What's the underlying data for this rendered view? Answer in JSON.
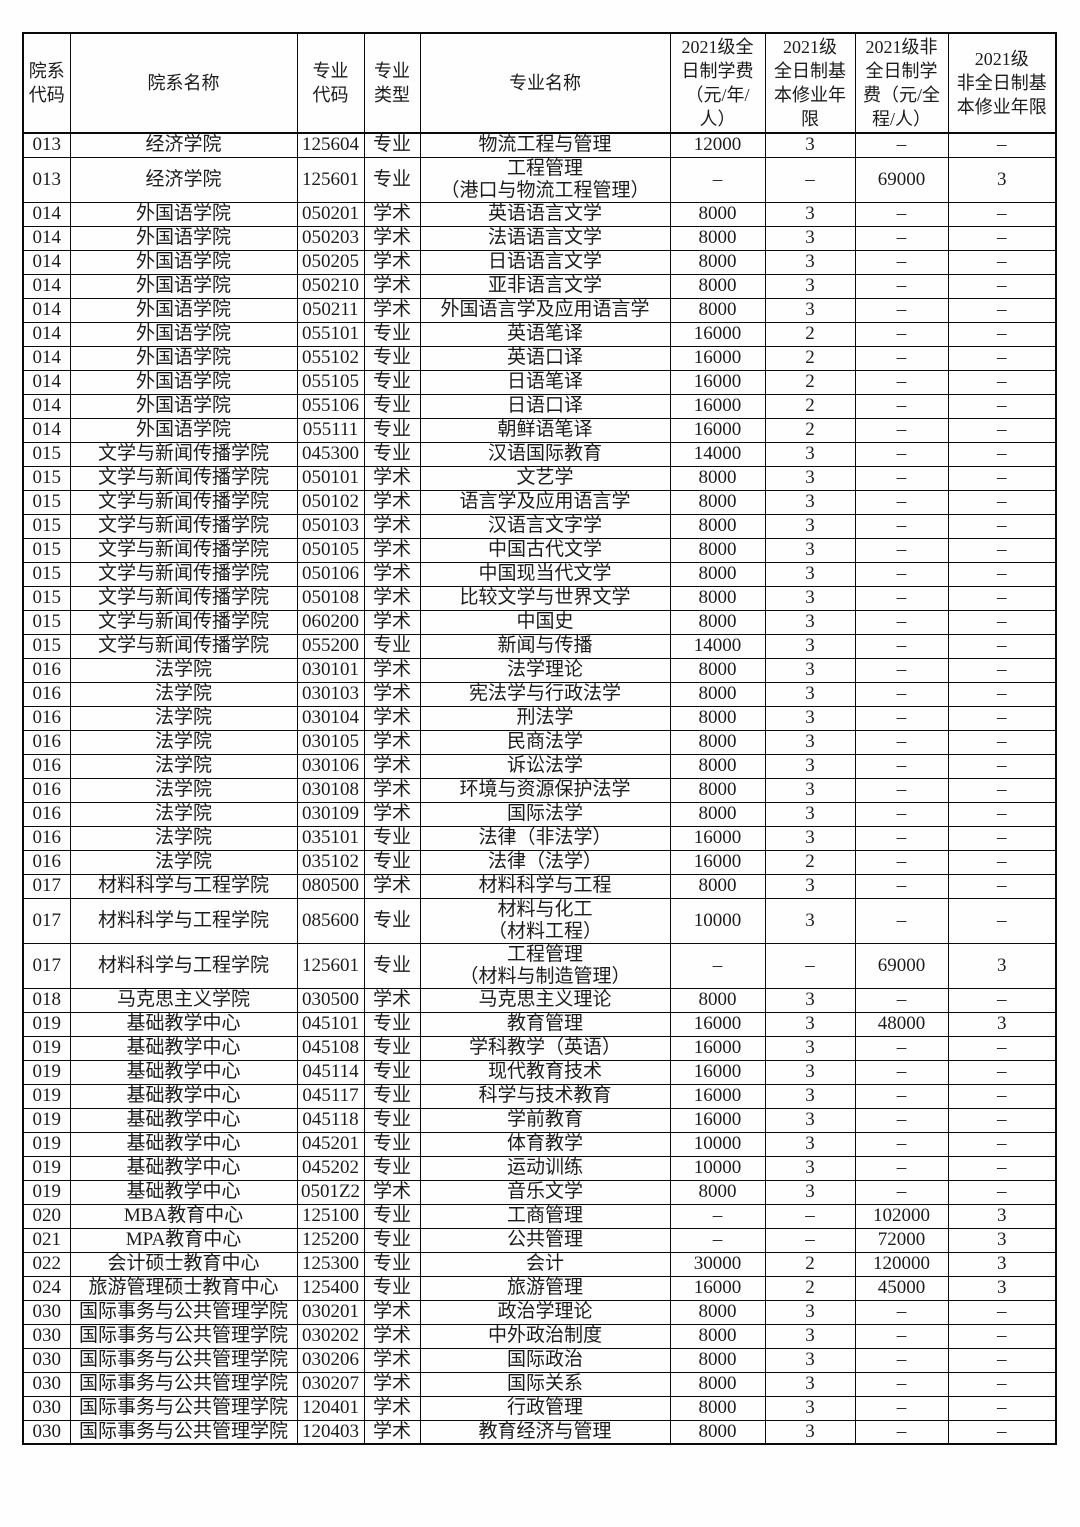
{
  "page": {
    "background_color": "#fefefe",
    "text_color": "#1c1c1c",
    "border_color": "#0a0a0a"
  },
  "table": {
    "columns": [
      "院系\n代码",
      "院系名称",
      "专业\n代码",
      "专业\n类型",
      "专业名称",
      "2021级全\n日制学费\n（元/年/\n人）",
      "2021级\n全日制基\n本修业年\n限",
      "2021级非\n全日制学\n费（元/全\n程/人）",
      "2021级\n非全日制基\n本修业年限"
    ],
    "rows": [
      [
        "013",
        "经济学院",
        "125604",
        "专业",
        "物流工程与管理",
        "12000",
        "3",
        "–",
        "–"
      ],
      [
        "013",
        "经济学院",
        "125601",
        "专业",
        "工程管理\n（港口与物流工程管理）",
        "–",
        "–",
        "69000",
        "3"
      ],
      [
        "014",
        "外国语学院",
        "050201",
        "学术",
        "英语语言文学",
        "8000",
        "3",
        "–",
        "–"
      ],
      [
        "014",
        "外国语学院",
        "050203",
        "学术",
        "法语语言文学",
        "8000",
        "3",
        "–",
        "–"
      ],
      [
        "014",
        "外国语学院",
        "050205",
        "学术",
        "日语语言文学",
        "8000",
        "3",
        "–",
        "–"
      ],
      [
        "014",
        "外国语学院",
        "050210",
        "学术",
        "亚非语言文学",
        "8000",
        "3",
        "–",
        "–"
      ],
      [
        "014",
        "外国语学院",
        "050211",
        "学术",
        "外国语言学及应用语言学",
        "8000",
        "3",
        "–",
        "–"
      ],
      [
        "014",
        "外国语学院",
        "055101",
        "专业",
        "英语笔译",
        "16000",
        "2",
        "–",
        "–"
      ],
      [
        "014",
        "外国语学院",
        "055102",
        "专业",
        "英语口译",
        "16000",
        "2",
        "–",
        "–"
      ],
      [
        "014",
        "外国语学院",
        "055105",
        "专业",
        "日语笔译",
        "16000",
        "2",
        "–",
        "–"
      ],
      [
        "014",
        "外国语学院",
        "055106",
        "专业",
        "日语口译",
        "16000",
        "2",
        "–",
        "–"
      ],
      [
        "014",
        "外国语学院",
        "055111",
        "专业",
        "朝鲜语笔译",
        "16000",
        "2",
        "–",
        "–"
      ],
      [
        "015",
        "文学与新闻传播学院",
        "045300",
        "专业",
        "汉语国际教育",
        "14000",
        "3",
        "–",
        "–"
      ],
      [
        "015",
        "文学与新闻传播学院",
        "050101",
        "学术",
        "文艺学",
        "8000",
        "3",
        "–",
        "–"
      ],
      [
        "015",
        "文学与新闻传播学院",
        "050102",
        "学术",
        "语言学及应用语言学",
        "8000",
        "3",
        "–",
        "–"
      ],
      [
        "015",
        "文学与新闻传播学院",
        "050103",
        "学术",
        "汉语言文字学",
        "8000",
        "3",
        "–",
        "–"
      ],
      [
        "015",
        "文学与新闻传播学院",
        "050105",
        "学术",
        "中国古代文学",
        "8000",
        "3",
        "–",
        "–"
      ],
      [
        "015",
        "文学与新闻传播学院",
        "050106",
        "学术",
        "中国现当代文学",
        "8000",
        "3",
        "–",
        "–"
      ],
      [
        "015",
        "文学与新闻传播学院",
        "050108",
        "学术",
        "比较文学与世界文学",
        "8000",
        "3",
        "–",
        "–"
      ],
      [
        "015",
        "文学与新闻传播学院",
        "060200",
        "学术",
        "中国史",
        "8000",
        "3",
        "–",
        "–"
      ],
      [
        "015",
        "文学与新闻传播学院",
        "055200",
        "专业",
        "新闻与传播",
        "14000",
        "3",
        "–",
        "–"
      ],
      [
        "016",
        "法学院",
        "030101",
        "学术",
        "法学理论",
        "8000",
        "3",
        "–",
        "–"
      ],
      [
        "016",
        "法学院",
        "030103",
        "学术",
        "宪法学与行政法学",
        "8000",
        "3",
        "–",
        "–"
      ],
      [
        "016",
        "法学院",
        "030104",
        "学术",
        "刑法学",
        "8000",
        "3",
        "–",
        "–"
      ],
      [
        "016",
        "法学院",
        "030105",
        "学术",
        "民商法学",
        "8000",
        "3",
        "–",
        "–"
      ],
      [
        "016",
        "法学院",
        "030106",
        "学术",
        "诉讼法学",
        "8000",
        "3",
        "–",
        "–"
      ],
      [
        "016",
        "法学院",
        "030108",
        "学术",
        "环境与资源保护法学",
        "8000",
        "3",
        "–",
        "–"
      ],
      [
        "016",
        "法学院",
        "030109",
        "学术",
        "国际法学",
        "8000",
        "3",
        "–",
        "–"
      ],
      [
        "016",
        "法学院",
        "035101",
        "专业",
        "法律（非法学）",
        "16000",
        "3",
        "–",
        "–"
      ],
      [
        "016",
        "法学院",
        "035102",
        "专业",
        "法律（法学）",
        "16000",
        "2",
        "–",
        "–"
      ],
      [
        "017",
        "材料科学与工程学院",
        "080500",
        "学术",
        "材料科学与工程",
        "8000",
        "3",
        "–",
        "–"
      ],
      [
        "017",
        "材料科学与工程学院",
        "085600",
        "专业",
        "材料与化工\n（材料工程）",
        "10000",
        "3",
        "–",
        "–"
      ],
      [
        "017",
        "材料科学与工程学院",
        "125601",
        "专业",
        "工程管理\n（材料与制造管理）",
        "–",
        "–",
        "69000",
        "3"
      ],
      [
        "018",
        "马克思主义学院",
        "030500",
        "学术",
        "马克思主义理论",
        "8000",
        "3",
        "–",
        "–"
      ],
      [
        "019",
        "基础教学中心",
        "045101",
        "专业",
        "教育管理",
        "16000",
        "3",
        "48000",
        "3"
      ],
      [
        "019",
        "基础教学中心",
        "045108",
        "专业",
        "学科教学（英语）",
        "16000",
        "3",
        "–",
        "–"
      ],
      [
        "019",
        "基础教学中心",
        "045114",
        "专业",
        "现代教育技术",
        "16000",
        "3",
        "–",
        "–"
      ],
      [
        "019",
        "基础教学中心",
        "045117",
        "专业",
        "科学与技术教育",
        "16000",
        "3",
        "–",
        "–"
      ],
      [
        "019",
        "基础教学中心",
        "045118",
        "专业",
        "学前教育",
        "16000",
        "3",
        "–",
        "–"
      ],
      [
        "019",
        "基础教学中心",
        "045201",
        "专业",
        "体育教学",
        "10000",
        "3",
        "–",
        "–"
      ],
      [
        "019",
        "基础教学中心",
        "045202",
        "专业",
        "运动训练",
        "10000",
        "3",
        "–",
        "–"
      ],
      [
        "019",
        "基础教学中心",
        "0501Z2",
        "学术",
        "音乐文学",
        "8000",
        "3",
        "–",
        "–"
      ],
      [
        "020",
        "MBA教育中心",
        "125100",
        "专业",
        "工商管理",
        "–",
        "–",
        "102000",
        "3"
      ],
      [
        "021",
        "MPA教育中心",
        "125200",
        "专业",
        "公共管理",
        "–",
        "–",
        "72000",
        "3"
      ],
      [
        "022",
        "会计硕士教育中心",
        "125300",
        "专业",
        "会计",
        "30000",
        "2",
        "120000",
        "3"
      ],
      [
        "024",
        "旅游管理硕士教育中心",
        "125400",
        "专业",
        "旅游管理",
        "16000",
        "2",
        "45000",
        "3"
      ],
      [
        "030",
        "国际事务与公共管理学院",
        "030201",
        "学术",
        "政治学理论",
        "8000",
        "3",
        "–",
        "–"
      ],
      [
        "030",
        "国际事务与公共管理学院",
        "030202",
        "学术",
        "中外政治制度",
        "8000",
        "3",
        "–",
        "–"
      ],
      [
        "030",
        "国际事务与公共管理学院",
        "030206",
        "学术",
        "国际政治",
        "8000",
        "3",
        "–",
        "–"
      ],
      [
        "030",
        "国际事务与公共管理学院",
        "030207",
        "学术",
        "国际关系",
        "8000",
        "3",
        "–",
        "–"
      ],
      [
        "030",
        "国际事务与公共管理学院",
        "120401",
        "学术",
        "行政管理",
        "8000",
        "3",
        "–",
        "–"
      ],
      [
        "030",
        "国际事务与公共管理学院",
        "120403",
        "学术",
        "教育经济与管理",
        "8000",
        "3",
        "–",
        "–"
      ]
    ]
  }
}
